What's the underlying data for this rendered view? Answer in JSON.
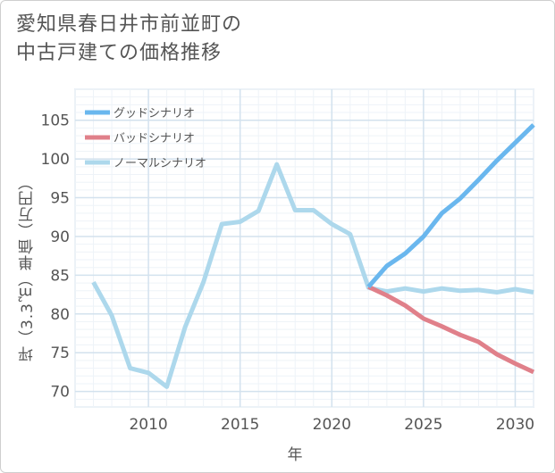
{
  "title_lines": [
    "愛知県春日井市前並町の",
    "中古戸建ての価格推移"
  ],
  "chart_data": {
    "type": "line",
    "title": "愛知県春日井市前並町の中古戸建ての価格推移",
    "xlabel": "年",
    "ylabel": "坪（3.3㎡）単価（万円）",
    "xlim": [
      2006,
      2031
    ],
    "ylim": [
      68,
      109
    ],
    "xticks": [
      2010,
      2015,
      2020,
      2025,
      2030
    ],
    "yticks": [
      70,
      75,
      80,
      85,
      90,
      95,
      100,
      105
    ],
    "legend_position": "top-left",
    "series": [
      {
        "name": "グッドシナリオ",
        "color": "#6ab7ee",
        "x": [
          2022,
          2023,
          2024,
          2025,
          2026,
          2027,
          2028,
          2029,
          2030,
          2031
        ],
        "values": [
          83.5,
          86.2,
          87.8,
          90.0,
          93.0,
          94.9,
          97.3,
          99.8,
          102.1,
          104.4
        ]
      },
      {
        "name": "バッドシナリオ",
        "color": "#e0808a",
        "x": [
          2022,
          2023,
          2024,
          2025,
          2026,
          2027,
          2028,
          2029,
          2030,
          2031
        ],
        "values": [
          83.5,
          82.4,
          81.1,
          79.4,
          78.4,
          77.3,
          76.4,
          74.8,
          73.6,
          72.5
        ]
      },
      {
        "name": "ノーマルシナリオ",
        "color": "#add8ec",
        "x": [
          2007,
          2008,
          2009,
          2010,
          2011,
          2012,
          2013,
          2014,
          2015,
          2016,
          2017,
          2018,
          2019,
          2020,
          2021,
          2022,
          2023,
          2024,
          2025,
          2026,
          2027,
          2028,
          2029,
          2030,
          2031
        ],
        "values": [
          84.1,
          79.8,
          73.0,
          72.4,
          70.6,
          78.3,
          84.1,
          91.6,
          91.9,
          93.3,
          99.3,
          93.4,
          93.4,
          91.6,
          90.3,
          83.4,
          82.9,
          83.3,
          82.9,
          83.3,
          83.0,
          83.1,
          82.8,
          83.2,
          82.8
        ]
      }
    ]
  }
}
